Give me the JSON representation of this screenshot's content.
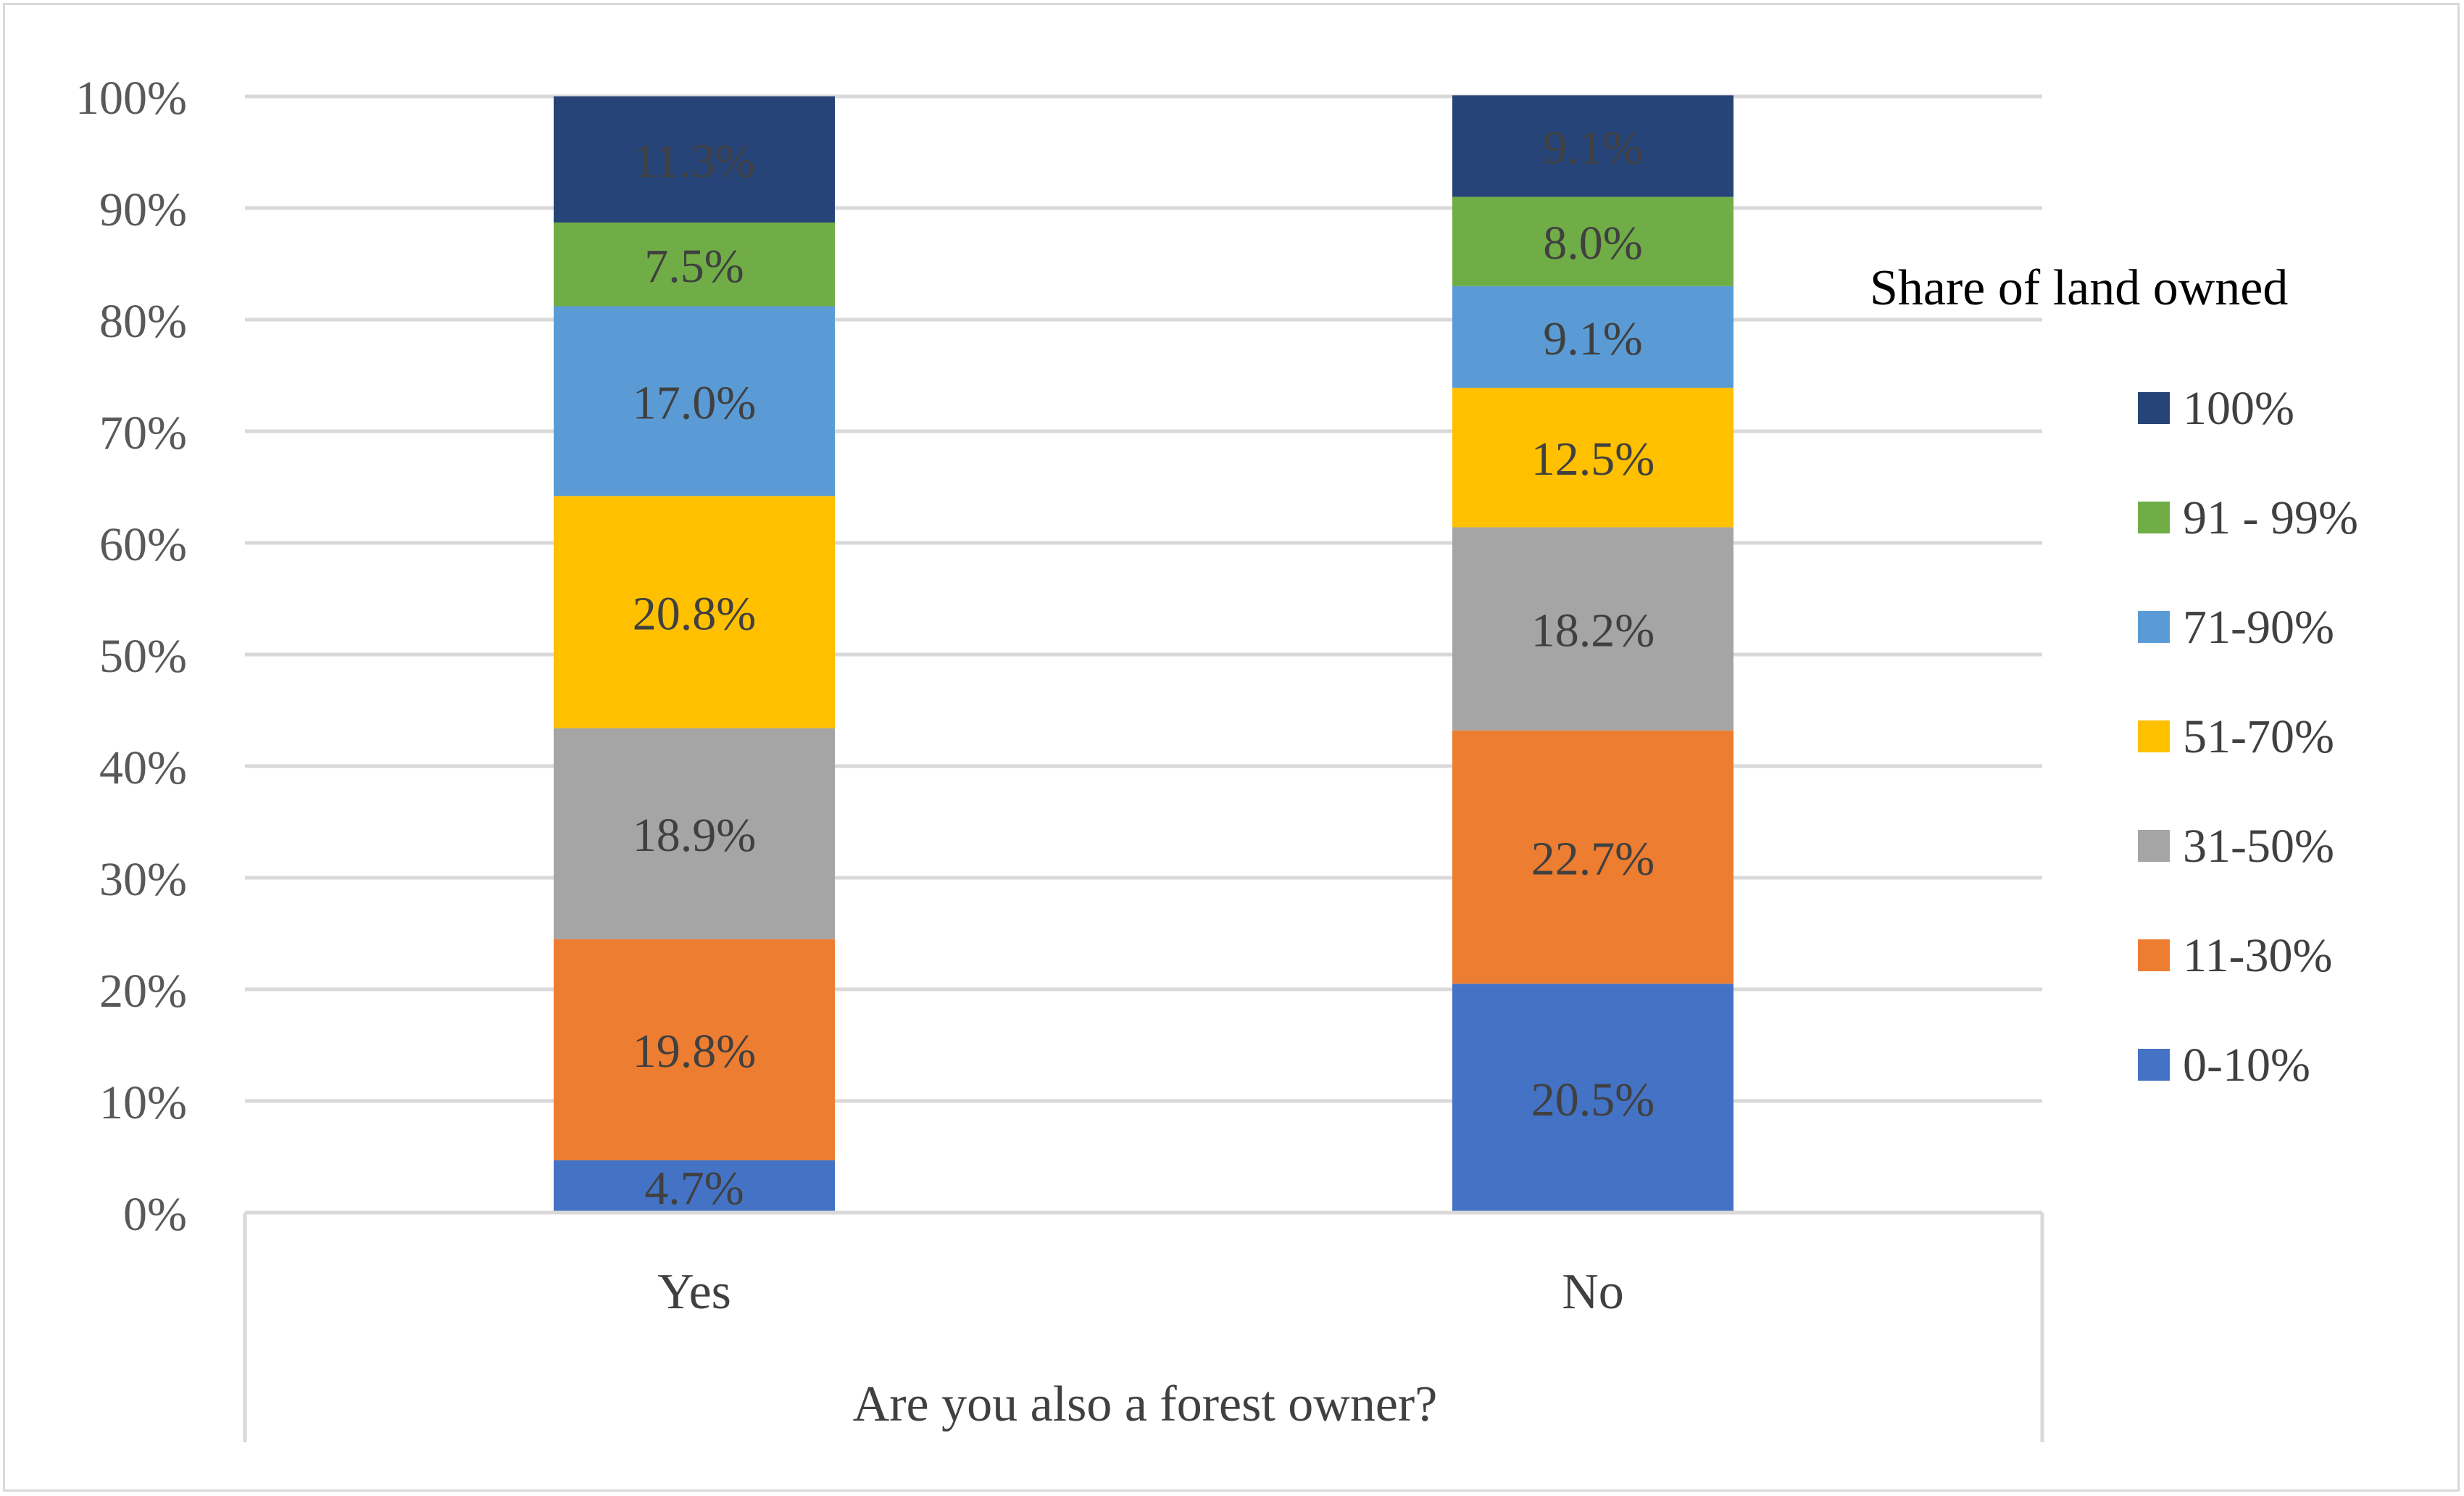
{
  "chart_data": {
    "type": "bar",
    "stacked": true,
    "percent_stacked": true,
    "categories": [
      "Yes",
      "No"
    ],
    "xlabel": "Are you also a forest owner?",
    "ylabel": "",
    "ylim": [
      0,
      100
    ],
    "y_ticks": [
      "0%",
      "10%",
      "20%",
      "30%",
      "40%",
      "50%",
      "60%",
      "70%",
      "80%",
      "90%",
      "100%"
    ],
    "grid": true,
    "legend": {
      "title": "Share of land owned",
      "position": "right"
    },
    "series": [
      {
        "name": "0-10%",
        "color": "#4472C4",
        "values": [
          4.7,
          20.5
        ],
        "labels": [
          "4.7%",
          "20.5%"
        ]
      },
      {
        "name": "11-30%",
        "color": "#ED7D31",
        "values": [
          19.8,
          22.7
        ],
        "labels": [
          "19.8%",
          "22.7%"
        ]
      },
      {
        "name": "31-50%",
        "color": "#A5A5A5",
        "values": [
          18.9,
          18.2
        ],
        "labels": [
          "18.9%",
          "18.2%"
        ]
      },
      {
        "name": "51-70%",
        "color": "#FFC000",
        "values": [
          20.8,
          12.5
        ],
        "labels": [
          "20.8%",
          "12.5%"
        ]
      },
      {
        "name": "71-90%",
        "color": "#5B9BD5",
        "values": [
          17.0,
          9.1
        ],
        "labels": [
          "17.0%",
          "9.1%"
        ]
      },
      {
        "name": "91 - 99%",
        "color": "#70AD47",
        "values": [
          7.5,
          8.0
        ],
        "labels": [
          "7.5%",
          "8.0%"
        ]
      },
      {
        "name": "100%",
        "color": "#264478",
        "values": [
          11.3,
          9.1
        ],
        "labels": [
          "11.3%",
          "9.1%"
        ]
      }
    ]
  }
}
